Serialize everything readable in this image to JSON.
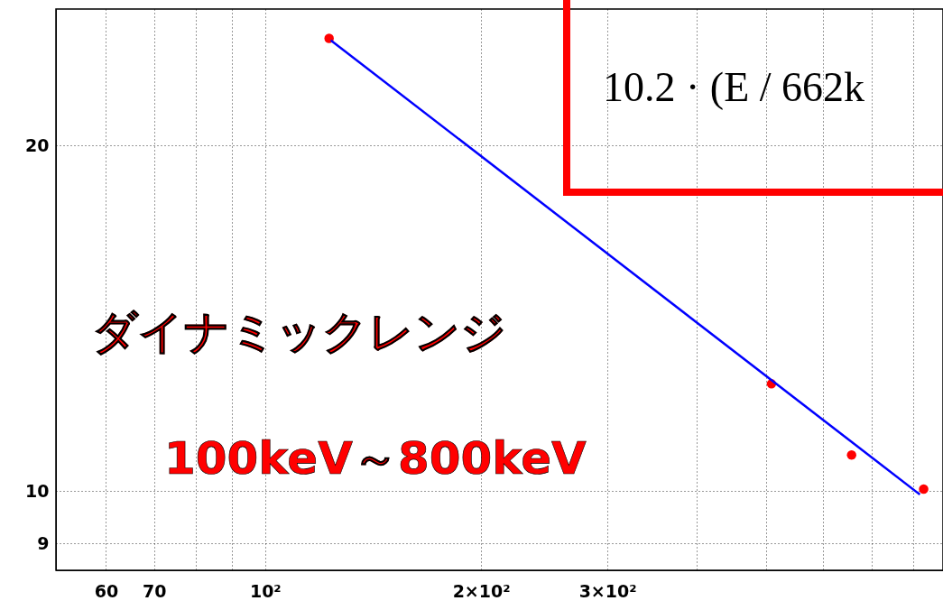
{
  "chart_data": {
    "type": "scatter",
    "xlim": [
      51.1,
      881
    ],
    "ylim": [
      8.53,
      26.3
    ],
    "xticks": [
      60,
      70,
      {
        "value": 80,
        "label": null
      },
      {
        "value": 90,
        "label": null
      },
      {
        "value": 100,
        "label": "10²"
      },
      {
        "value": 200,
        "label": "2×10²"
      },
      {
        "value": 300,
        "label": "3×10²"
      },
      {
        "value": 400,
        "label": null
      },
      {
        "value": 500,
        "label": null
      },
      {
        "value": 600,
        "label": null
      },
      {
        "value": 700,
        "label": null
      },
      {
        "value": 800,
        "label": null
      }
    ],
    "yticks": [
      9,
      10,
      20
    ],
    "log": "xy",
    "grid": true,
    "series": [
      {
        "marker": "circle",
        "color": "#ff0000",
        "x": [
          122.8,
          508,
          657,
          828
        ],
        "values": [
          24.8,
          12.4,
          10.75,
          10.04
        ]
      },
      {
        "type": "line",
        "line_style": "solid",
        "color": "#0000ff",
        "x": [
          123.5,
          818
        ],
        "values": [
          24.7,
          9.93
        ]
      }
    ],
    "annotations": [
      "10.2 · (E / 662k",
      "ダイナミックレンジ",
      "100keV～800keV"
    ]
  }
}
